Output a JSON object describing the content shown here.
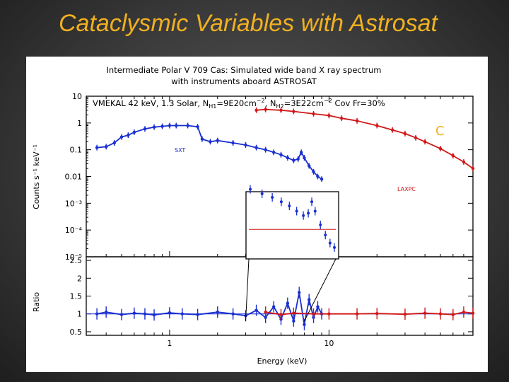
{
  "slide": {
    "title": "Cataclysmic Variables with Astrosat"
  },
  "figure": {
    "title_line1": "Intermediate Polar V 709 Cas: Simulated wide  band X  ray spectrum",
    "title_line2": "with instruments aboard ASTROSAT",
    "model_text": "VMEKAL 42 keV, 1.3 Solar, N",
    "model_text_h1_sub": "H1",
    "model_text_mid": "=9E20cm",
    "model_text_mid2": ", N",
    "model_text_h2_sub": "H2",
    "model_text_end": "=3E22cm",
    "model_text_tail": " Cov Fr=30%",
    "exp_minus2": "−2",
    "label_sxt": "SXT",
    "label_laxpc": "LAXPC",
    "label_partial": "C",
    "colors": {
      "sxt": "#1a2fd0",
      "laxpc": "#d01818",
      "axes": "#000000",
      "title": "#f0b020"
    }
  },
  "chart_data": [
    {
      "type": "scatter",
      "panel": "spectrum",
      "ylabel": "Counts s⁻¹ keV⁻¹",
      "y_scale": "log",
      "ylim": [
        1e-05,
        10
      ],
      "x_scale": "log",
      "xlim": [
        0.3,
        80
      ],
      "yticks": [
        "10",
        "1",
        "0.1",
        "0.01",
        "10⁻³",
        "10⁻⁴",
        "10⁻⁵"
      ],
      "series": [
        {
          "name": "SXT",
          "color": "#1a2fd0",
          "x": [
            0.35,
            0.4,
            0.45,
            0.5,
            0.55,
            0.6,
            0.7,
            0.8,
            0.9,
            1.0,
            1.1,
            1.3,
            1.5,
            1.6,
            1.8,
            2.0,
            2.5,
            3.0,
            3.5,
            4.0,
            4.5,
            5.0,
            5.5,
            6.0,
            6.4,
            6.7,
            7.0,
            7.5,
            8.0,
            8.5,
            9.0
          ],
          "y": [
            0.12,
            0.13,
            0.18,
            0.3,
            0.35,
            0.45,
            0.6,
            0.7,
            0.75,
            0.8,
            0.8,
            0.8,
            0.72,
            0.25,
            0.2,
            0.22,
            0.18,
            0.15,
            0.12,
            0.1,
            0.08,
            0.065,
            0.05,
            0.04,
            0.045,
            0.08,
            0.05,
            0.025,
            0.015,
            0.01,
            0.008
          ]
        },
        {
          "name": "LAXPC",
          "color": "#d01818",
          "x": [
            3.5,
            4,
            5,
            6,
            8,
            10,
            12,
            15,
            20,
            25,
            30,
            35,
            40,
            50,
            60,
            70,
            80
          ],
          "y": [
            3.0,
            3.2,
            3.0,
            2.7,
            2.2,
            1.9,
            1.5,
            1.2,
            0.8,
            0.55,
            0.4,
            0.28,
            0.2,
            0.11,
            0.06,
            0.035,
            0.02
          ]
        }
      ]
    },
    {
      "type": "scatter",
      "panel": "ratio",
      "xlabel": "Energy (keV)",
      "ylabel": "Ratio",
      "x_scale": "log",
      "xlim": [
        0.3,
        80
      ],
      "ylim": [
        0.4,
        2.6
      ],
      "xticks": [
        "1",
        "10"
      ],
      "yticks": [
        "2.5",
        "2",
        "1.5",
        "1",
        "0.5"
      ],
      "series": [
        {
          "name": "SXT",
          "color": "#1a2fd0",
          "x": [
            0.35,
            0.4,
            0.5,
            0.6,
            0.7,
            0.8,
            1.0,
            1.2,
            1.5,
            2.0,
            2.5,
            3.0,
            3.5,
            4.0,
            4.5,
            5.0,
            5.5,
            6.0,
            6.5,
            7.0,
            7.5,
            8.0,
            8.5,
            9.0
          ],
          "y": [
            1.0,
            1.05,
            0.98,
            1.02,
            1.0,
            0.97,
            1.03,
            1.0,
            0.98,
            1.05,
            1.0,
            0.95,
            1.1,
            0.9,
            1.2,
            0.85,
            1.3,
            0.8,
            1.6,
            0.7,
            1.4,
            0.9,
            1.2,
            1.0
          ]
        },
        {
          "name": "LAXPC",
          "color": "#d01818",
          "x": [
            4,
            5,
            6,
            8,
            10,
            15,
            20,
            30,
            40,
            50,
            60,
            70,
            80
          ],
          "y": [
            1.05,
            0.98,
            1.02,
            1.0,
            1.0,
            1.0,
            1.01,
            0.99,
            1.02,
            1.0,
            0.98,
            1.05,
            1.02
          ]
        }
      ]
    }
  ]
}
